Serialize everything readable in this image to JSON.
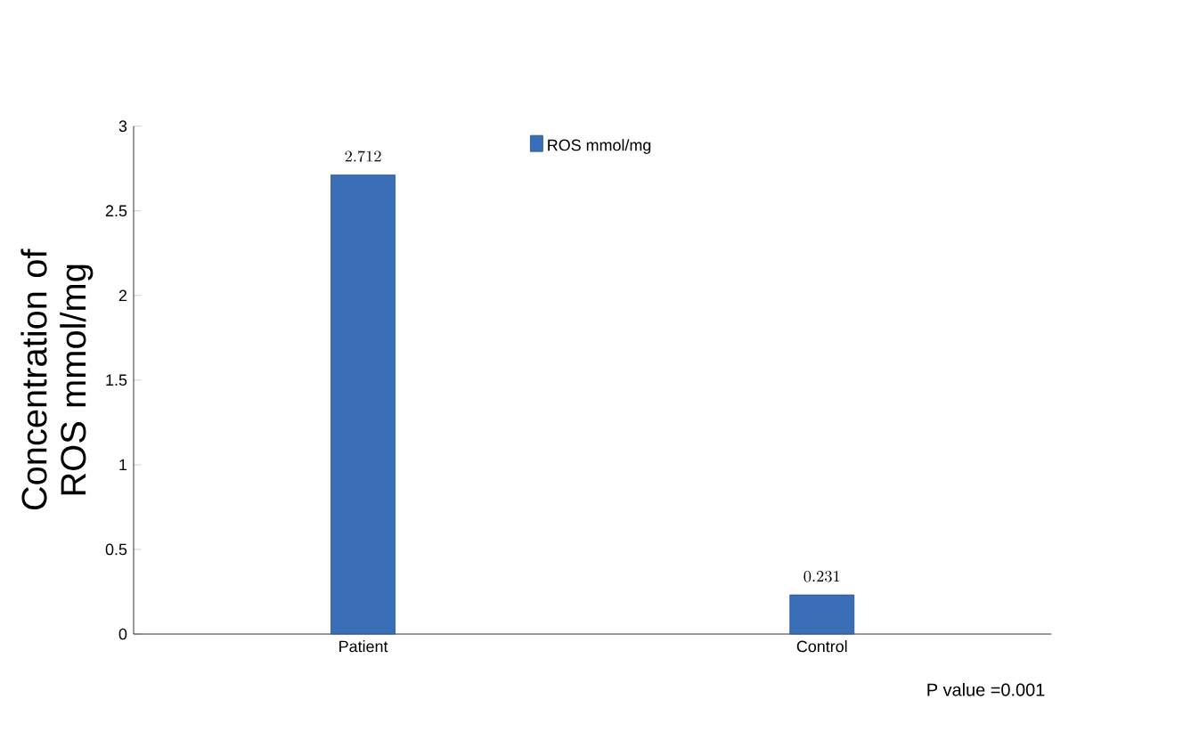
{
  "chart_data": {
    "type": "bar",
    "categories": [
      "Patient",
      "Control"
    ],
    "series": [
      {
        "name": "ROS mmol/mg",
        "color": "#3a6fb8",
        "values": [
          2.712,
          0.231
        ]
      }
    ],
    "ylabel": "Concentration of ROS mmol/mg",
    "ylim": [
      0,
      3
    ],
    "yticks": [
      0,
      0.5,
      1,
      1.5,
      2,
      2.5,
      3
    ],
    "data_labels": true,
    "legend": "top",
    "annotations": [
      "P value =0.001"
    ]
  }
}
